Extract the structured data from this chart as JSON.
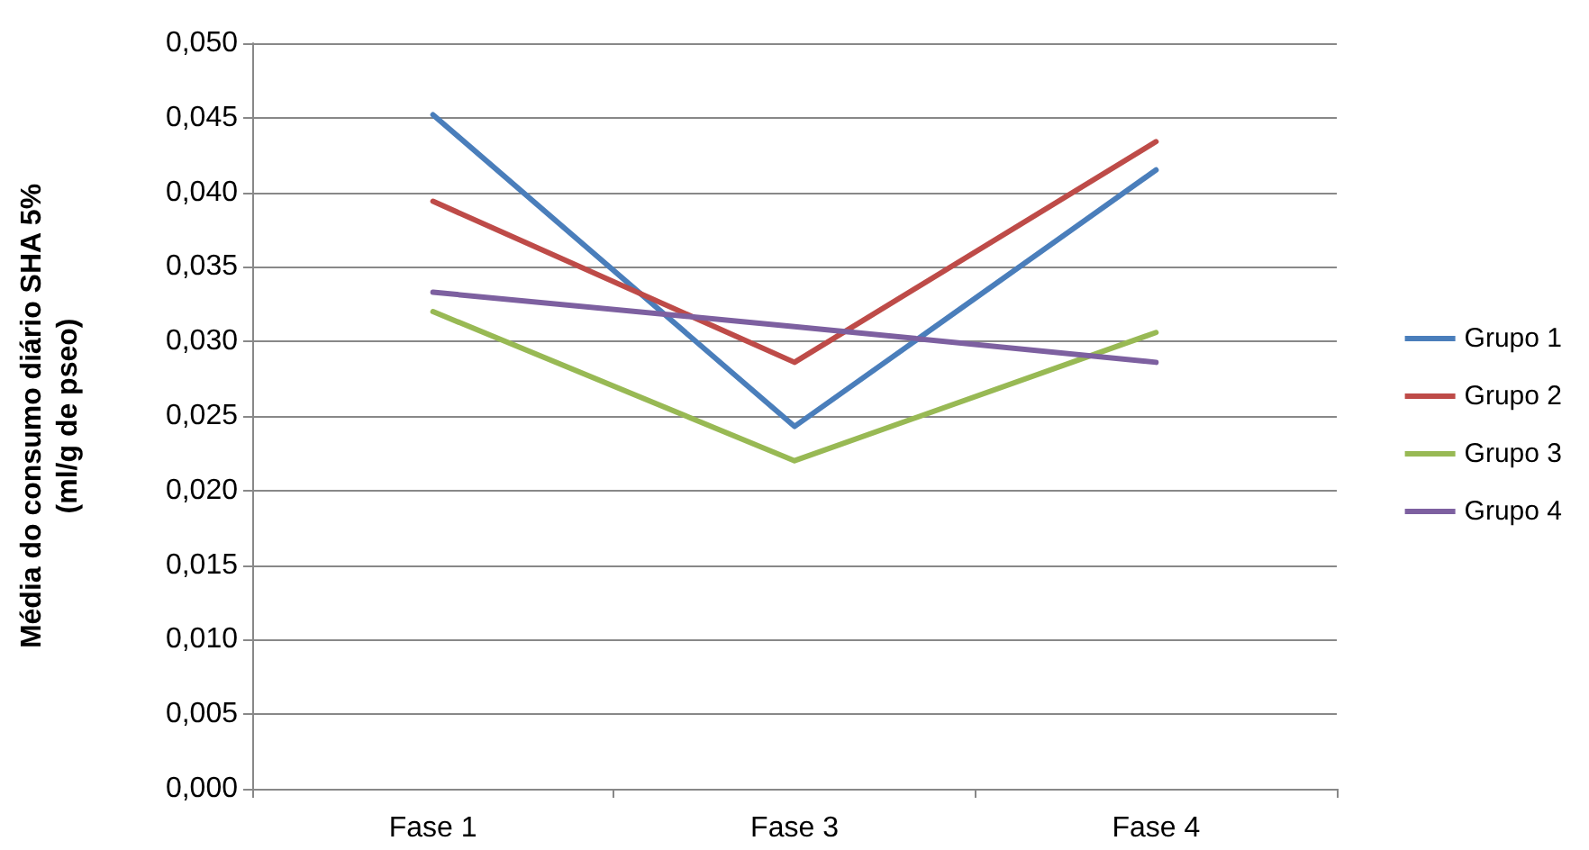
{
  "chart_data": {
    "type": "line",
    "ylabel": "Média do consumo diário SHA 5%\n(ml/g de pseo)",
    "categories": [
      "Fase 1",
      "Fase 3",
      "Fase 4"
    ],
    "series": [
      {
        "name": "Grupo 1",
        "color": "#4a7ebb",
        "values": [
          0.0452,
          0.0243,
          0.0415
        ]
      },
      {
        "name": "Grupo 2",
        "color": "#be4b48",
        "values": [
          0.0394,
          0.0286,
          0.0434
        ]
      },
      {
        "name": "Grupo 3",
        "color": "#98b954",
        "values": [
          0.032,
          0.022,
          0.0306
        ]
      },
      {
        "name": "Grupo 4",
        "color": "#7d60a0",
        "values": [
          0.0333,
          0.031,
          0.0286
        ]
      }
    ],
    "ylim": [
      0,
      0.05
    ],
    "yticks": [
      {
        "value": 0,
        "label": "0,000"
      },
      {
        "value": 0.005,
        "label": "0,005"
      },
      {
        "value": 0.01,
        "label": "0,010"
      },
      {
        "value": 0.015,
        "label": "0,015"
      },
      {
        "value": 0.02,
        "label": "0,020"
      },
      {
        "value": 0.025,
        "label": "0,025"
      },
      {
        "value": 0.03,
        "label": "0,030"
      },
      {
        "value": 0.035,
        "label": "0,035"
      },
      {
        "value": 0.04,
        "label": "0,040"
      },
      {
        "value": 0.045,
        "label": "0,045"
      },
      {
        "value": 0.05,
        "label": "0,050"
      }
    ],
    "grid": "y",
    "legend": "right",
    "marker": "none",
    "line_style": "solid"
  }
}
